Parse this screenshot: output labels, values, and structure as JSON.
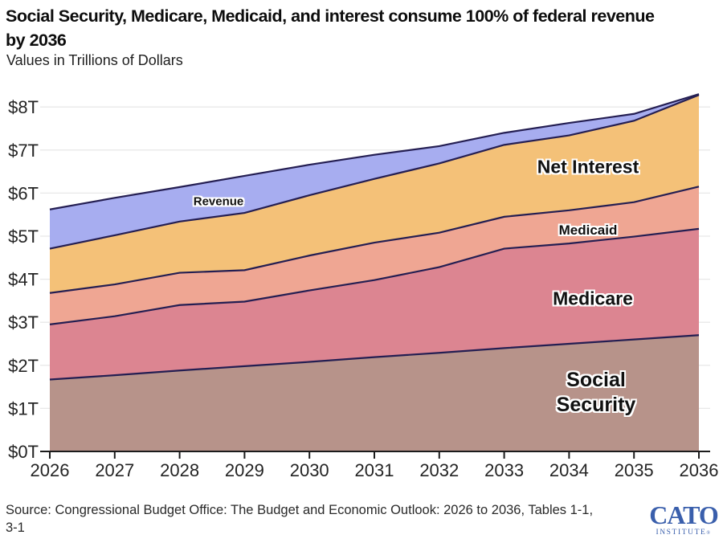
{
  "header": {
    "title_line1": "Social Security, Medicare, Medicaid, and interest consume 100% of federal revenue",
    "title_line2": "by 2036",
    "subtitle": "Values in Trillions of Dollars"
  },
  "chart_data": {
    "type": "area",
    "stacked": true,
    "title": "Social Security, Medicare, Medicaid, and interest consume 100% of federal revenue by 2036",
    "ylabel": "Values in Trillions of Dollars",
    "xlabel": "",
    "x_years": [
      2026,
      2027,
      2028,
      2029,
      2030,
      2031,
      2032,
      2033,
      2034,
      2035,
      2036
    ],
    "unit": "trillions of dollars",
    "series": [
      {
        "name": "Social Security",
        "color": "#b7938a",
        "values": [
          1.67,
          1.77,
          1.88,
          1.98,
          2.08,
          2.19,
          2.29,
          2.4,
          2.5,
          2.6,
          2.7
        ]
      },
      {
        "name": "Medicare",
        "color": "#dc8591",
        "values": [
          1.28,
          1.37,
          1.52,
          1.5,
          1.66,
          1.79,
          1.99,
          2.31,
          2.33,
          2.39,
          2.47
        ]
      },
      {
        "name": "Medicaid",
        "color": "#efa693",
        "values": [
          0.73,
          0.74,
          0.75,
          0.73,
          0.81,
          0.87,
          0.8,
          0.74,
          0.77,
          0.8,
          0.98
        ]
      },
      {
        "name": "Net Interest",
        "color": "#f4c178",
        "values": [
          1.03,
          1.14,
          1.19,
          1.33,
          1.4,
          1.48,
          1.61,
          1.67,
          1.74,
          1.89,
          2.13
        ]
      }
    ],
    "revenue_line": {
      "name": "Revenue",
      "area_color": "#a7adf0",
      "values": [
        5.62,
        5.89,
        6.14,
        6.4,
        6.66,
        6.89,
        7.09,
        7.4,
        7.63,
        7.84,
        8.3
      ]
    },
    "ytick_values": [
      0,
      1,
      2,
      3,
      4,
      5,
      6,
      7,
      8
    ],
    "ytick_labels": [
      "$0T",
      "$1T",
      "$2T",
      "$3T",
      "$4T",
      "$5T",
      "$6T",
      "$7T",
      "$8T"
    ],
    "ylim": [
      0,
      8.5
    ],
    "grid": true,
    "legend_position": "labels-inside-areas",
    "boundary_line_color": "#241e52",
    "grid_color": "#e8e8e8",
    "axis_color": "#1c1c1c",
    "tick_label_color": "#242424"
  },
  "area_labels": {
    "revenue": "Revenue",
    "net_interest": "Net Interest",
    "medicaid": "Medicaid",
    "medicare": "Medicare",
    "social_security": "Social Security"
  },
  "footer": {
    "source_line1": "Source: Congressional Budget Office: The Budget and Economic Outlook: 2026 to 2036, Tables 1-1,",
    "source_line2": "3-1",
    "logo_text": "CATO",
    "logo_subtext": "INSTITUTE",
    "logo_reg": "®"
  }
}
